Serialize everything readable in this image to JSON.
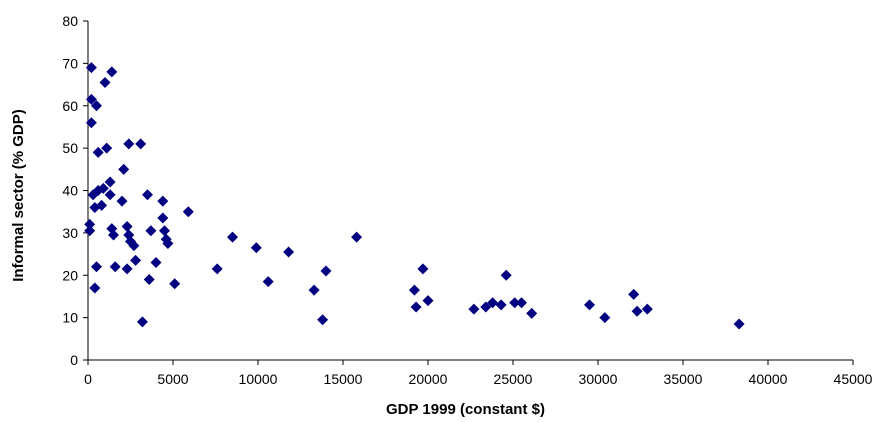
{
  "chart_data": {
    "type": "scatter",
    "title": "",
    "xlabel": "GDP 1999 (constant $)",
    "ylabel": "Informal sector (% GDP)",
    "xlim": [
      0,
      45000
    ],
    "ylim": [
      0,
      80
    ],
    "xticks": [
      0,
      5000,
      10000,
      15000,
      20000,
      25000,
      30000,
      35000,
      40000,
      45000
    ],
    "yticks": [
      0,
      10,
      20,
      30,
      40,
      50,
      60,
      70,
      80
    ],
    "grid": false,
    "legend": "none",
    "marker": "diamond",
    "marker_color": "#000080",
    "series": [
      {
        "points": [
          [
            200,
            69.0
          ],
          [
            1400,
            68.0
          ],
          [
            1000,
            65.5
          ],
          [
            200,
            61.5
          ],
          [
            500,
            60.0
          ],
          [
            200,
            56.0
          ],
          [
            2400,
            51.0
          ],
          [
            3100,
            51.0
          ],
          [
            1100,
            50.0
          ],
          [
            600,
            49.0
          ],
          [
            2100,
            45.0
          ],
          [
            1300,
            42.0
          ],
          [
            600,
            40.0
          ],
          [
            900,
            40.5
          ],
          [
            300,
            39.0
          ],
          [
            1300,
            39.0
          ],
          [
            3500,
            39.0
          ],
          [
            2000,
            37.5
          ],
          [
            4400,
            37.5
          ],
          [
            400,
            36.0
          ],
          [
            800,
            36.5
          ],
          [
            5900,
            35.0
          ],
          [
            4400,
            33.5
          ],
          [
            100,
            32.0
          ],
          [
            2300,
            31.5
          ],
          [
            1400,
            31.0
          ],
          [
            100,
            30.5
          ],
          [
            3700,
            30.5
          ],
          [
            4500,
            30.5
          ],
          [
            1500,
            29.5
          ],
          [
            2400,
            29.5
          ],
          [
            8500,
            29.0
          ],
          [
            15800,
            29.0
          ],
          [
            4600,
            28.5
          ],
          [
            2500,
            28.0
          ],
          [
            4700,
            27.5
          ],
          [
            2700,
            27.0
          ],
          [
            9900,
            26.5
          ],
          [
            11800,
            25.5
          ],
          [
            2800,
            23.5
          ],
          [
            4000,
            23.0
          ],
          [
            500,
            22.0
          ],
          [
            1600,
            22.0
          ],
          [
            2300,
            21.5
          ],
          [
            7600,
            21.5
          ],
          [
            19700,
            21.5
          ],
          [
            14000,
            21.0
          ],
          [
            24600,
            20.0
          ],
          [
            3600,
            19.0
          ],
          [
            10600,
            18.5
          ],
          [
            5100,
            18.0
          ],
          [
            400,
            17.0
          ],
          [
            13300,
            16.5
          ],
          [
            19200,
            16.5
          ],
          [
            32100,
            15.5
          ],
          [
            20000,
            14.0
          ],
          [
            23800,
            13.5
          ],
          [
            25100,
            13.5
          ],
          [
            25500,
            13.5
          ],
          [
            24300,
            13.0
          ],
          [
            29500,
            13.0
          ],
          [
            23400,
            12.5
          ],
          [
            19300,
            12.5
          ],
          [
            22700,
            12.0
          ],
          [
            32300,
            11.5
          ],
          [
            32900,
            12.0
          ],
          [
            26100,
            11.0
          ],
          [
            30400,
            10.0
          ],
          [
            13800,
            9.5
          ],
          [
            3200,
            9.0
          ],
          [
            38300,
            8.5
          ]
        ]
      }
    ]
  }
}
